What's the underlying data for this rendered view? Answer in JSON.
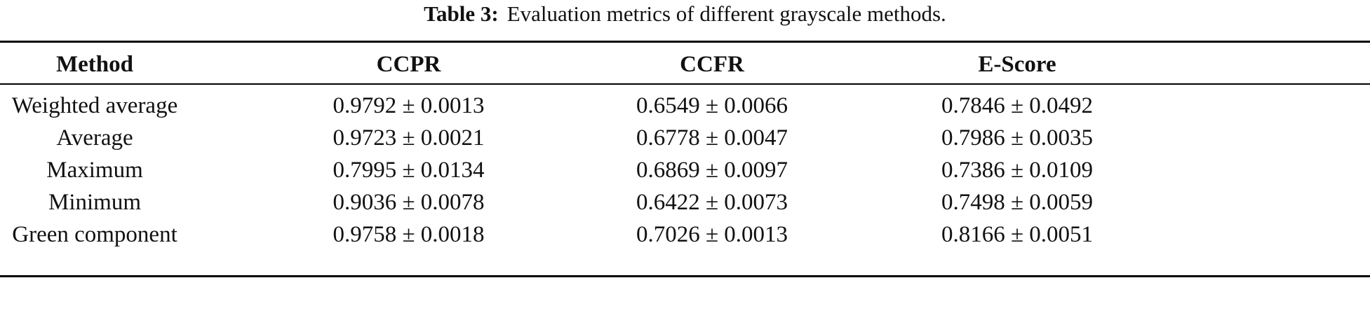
{
  "caption": {
    "label": "Table 3:",
    "text": "Evaluation metrics of different grayscale methods."
  },
  "table": {
    "headers": [
      "Method",
      "CCPR",
      "CCFR",
      "E-Score"
    ],
    "rows": [
      [
        "Weighted average",
        "0.9792 ± 0.0013",
        "0.6549 ± 0.0066",
        "0.7846 ± 0.0492"
      ],
      [
        "Average",
        "0.9723 ± 0.0021",
        "0.6778 ± 0.0047",
        "0.7986 ± 0.0035"
      ],
      [
        "Maximum",
        "0.7995 ± 0.0134",
        "0.6869 ± 0.0097",
        "0.7386 ± 0.0109"
      ],
      [
        "Minimum",
        "0.9036 ± 0.0078",
        "0.6422 ± 0.0073",
        "0.7498 ± 0.0059"
      ],
      [
        "Green component",
        "0.9758 ± 0.0018",
        "0.7026 ± 0.0013",
        "0.8166 ± 0.0051"
      ]
    ]
  }
}
